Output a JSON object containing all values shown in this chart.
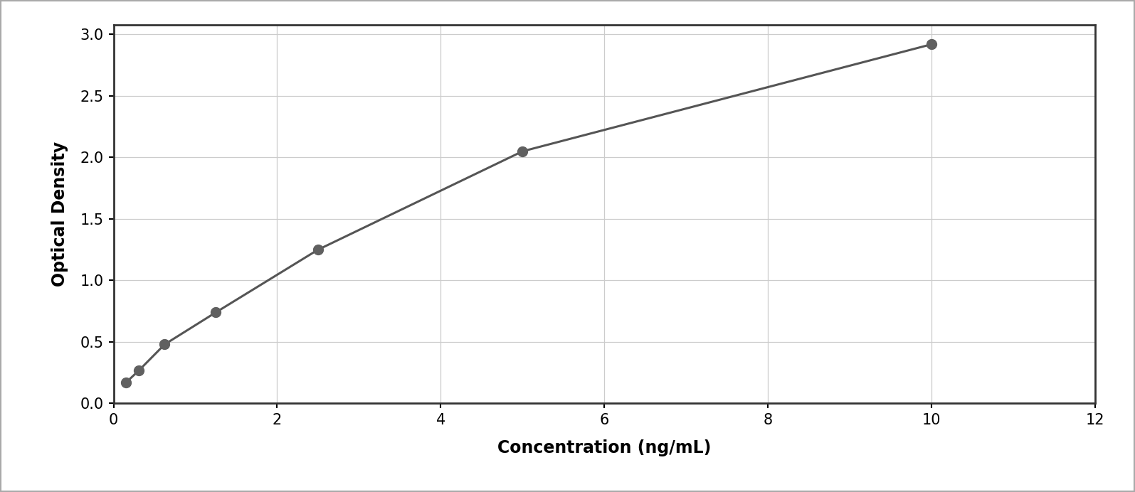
{
  "x_data": [
    0.156,
    0.313,
    0.625,
    1.25,
    2.5,
    5.0,
    10.0
  ],
  "y_data": [
    0.172,
    0.27,
    0.48,
    0.74,
    1.25,
    2.05,
    2.92
  ],
  "xlabel": "Concentration (ng/mL)",
  "ylabel": "Optical Density",
  "xlim": [
    0,
    12
  ],
  "ylim": [
    0,
    3.08
  ],
  "xticks": [
    0,
    2,
    4,
    6,
    8,
    10,
    12
  ],
  "yticks": [
    0,
    0.5,
    1.0,
    1.5,
    2.0,
    2.5,
    3.0
  ],
  "marker_color": "#606060",
  "line_color": "#555555",
  "marker_size": 10,
  "background_color": "#ffffff",
  "plot_bg_color": "#ffffff",
  "grid_color": "#cccccc",
  "outer_border_color": "#aaaaaa",
  "xlabel_fontsize": 17,
  "ylabel_fontsize": 17,
  "tick_fontsize": 15,
  "spine_color": "#333333",
  "spine_linewidth": 2.0
}
